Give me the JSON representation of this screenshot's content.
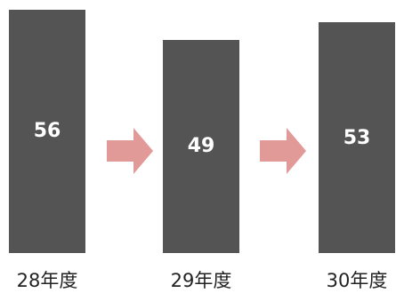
{
  "chart_data": {
    "type": "bar",
    "categories": [
      "28年度",
      "29年度",
      "30年度"
    ],
    "values": [
      56,
      49,
      53
    ],
    "ylim": [
      0,
      56
    ],
    "bar_color": "#545454",
    "value_label_color": "#ffffff",
    "arrow_color": "#e29a98",
    "grid": false,
    "legend": "none"
  }
}
